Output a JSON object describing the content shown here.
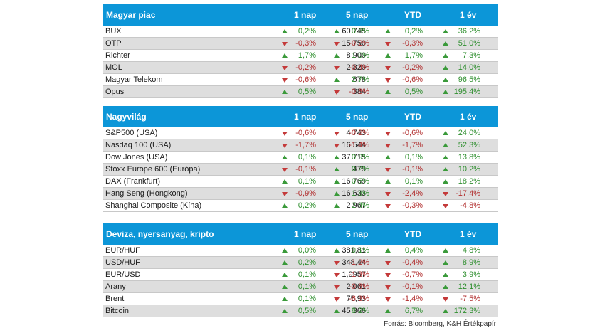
{
  "colors": {
    "header_bg": "#0c96d8",
    "up": "#3a9a3a",
    "down": "#c43a3a",
    "row_shade": "#dedede"
  },
  "tables": [
    {
      "title": "Magyar piac",
      "cols": [
        "1 nap",
        "5 nap",
        "YTD",
        "1 év"
      ],
      "rows": [
        {
          "name": "BUX",
          "value": "60 745",
          "changes": [
            "0,2%",
            "0,3%",
            "0,2%",
            "36,2%"
          ],
          "dirs": [
            "up",
            "up",
            "up",
            "up"
          ]
        },
        {
          "name": "OTP",
          "value": "15 750",
          "changes": [
            "-0,3%",
            "-0,2%",
            "-0,3%",
            "51,0%"
          ],
          "dirs": [
            "down",
            "down",
            "down",
            "up"
          ]
        },
        {
          "name": "Richter",
          "value": "8 900",
          "changes": [
            "1,7%",
            "1,0%",
            "1,7%",
            "7,3%"
          ],
          "dirs": [
            "up",
            "up",
            "up",
            "up"
          ]
        },
        {
          "name": "MOL",
          "value": "2 820",
          "changes": [
            "-0,2%",
            "-0,4%",
            "-0,2%",
            "14,0%"
          ],
          "dirs": [
            "down",
            "down",
            "down",
            "up"
          ]
        },
        {
          "name": "Magyar Telekom",
          "value": "678",
          "changes": [
            "-0,6%",
            "2,7%",
            "-0,6%",
            "96,5%"
          ],
          "dirs": [
            "down",
            "up",
            "down",
            "up"
          ]
        },
        {
          "name": "Opus",
          "value": "384",
          "changes": [
            "0,5%",
            "-0,8%",
            "0,5%",
            "195,4%"
          ],
          "dirs": [
            "up",
            "down",
            "up",
            "up"
          ]
        }
      ]
    },
    {
      "title": "Nagyvilág",
      "cols": [
        "1 nap",
        "5 nap",
        "YTD",
        "1 év"
      ],
      "rows": [
        {
          "name": "S&P500 (USA)",
          "value": "4 743",
          "changes": [
            "-0,6%",
            "-0,2%",
            "-0,6%",
            "24,0%"
          ],
          "dirs": [
            "down",
            "down",
            "down",
            "up"
          ]
        },
        {
          "name": "Nasdaq 100 (USA)",
          "value": "16 544",
          "changes": [
            "-1,7%",
            "-1,4%",
            "-1,7%",
            "52,3%"
          ],
          "dirs": [
            "down",
            "down",
            "down",
            "up"
          ]
        },
        {
          "name": "Dow Jones (USA)",
          "value": "37 715",
          "changes": [
            "0,1%",
            "0,9%",
            "0,1%",
            "13,8%"
          ],
          "dirs": [
            "up",
            "up",
            "up",
            "up"
          ]
        },
        {
          "name": "Stoxx Europe 600 (Európa)",
          "value": "479",
          "changes": [
            "-0,1%",
            "0,2%",
            "-0,1%",
            "10,2%"
          ],
          "dirs": [
            "down",
            "up",
            "down",
            "up"
          ]
        },
        {
          "name": "DAX (Frankfurt)",
          "value": "16 769",
          "changes": [
            "0,1%",
            "0,5%",
            "0,1%",
            "18,2%"
          ],
          "dirs": [
            "up",
            "up",
            "up",
            "up"
          ]
        },
        {
          "name": "Hang Seng (Hongkong)",
          "value": "16 633",
          "changes": [
            "-0,9%",
            "1,8%",
            "-2,4%",
            "-17,4%"
          ],
          "dirs": [
            "down",
            "up",
            "down",
            "down"
          ]
        },
        {
          "name": "Shanghai Composite (Kína)",
          "value": "2 967",
          "changes": [
            "0,2%",
            "2,4%",
            "-0,3%",
            "-4,8%"
          ],
          "dirs": [
            "up",
            "up",
            "down",
            "down"
          ]
        }
      ]
    },
    {
      "title": "Deviza, nyersanyag, kripto",
      "cols": [
        "1 nap",
        "5 nap",
        "YTD",
        "1 év"
      ],
      "rows": [
        {
          "name": "EUR/HUF",
          "value": "381,81",
          "changes": [
            "0,0%",
            "0,1%",
            "0,4%",
            "4,8%"
          ],
          "dirs": [
            "up",
            "up",
            "up",
            "up"
          ]
        },
        {
          "name": "USD/HUF",
          "value": "348,44",
          "changes": [
            "0,2%",
            "-1,2%",
            "-0,4%",
            "8,9%"
          ],
          "dirs": [
            "up",
            "down",
            "down",
            "up"
          ]
        },
        {
          "name": "EUR/USD",
          "value": "1,0957",
          "changes": [
            "0,1%",
            "-1,3%",
            "-0,7%",
            "3,9%"
          ],
          "dirs": [
            "up",
            "down",
            "down",
            "up"
          ]
        },
        {
          "name": "Arany",
          "value": "2 061",
          "changes": [
            "0,1%",
            "-0,8%",
            "-0,1%",
            "12,1%"
          ],
          "dirs": [
            "up",
            "down",
            "down",
            "up"
          ]
        },
        {
          "name": "Brent",
          "value": "75,93",
          "changes": [
            "0,1%",
            "-6,3%",
            "-1,4%",
            "-7,5%"
          ],
          "dirs": [
            "up",
            "down",
            "down",
            "down"
          ]
        },
        {
          "name": "Bitcoin",
          "value": "45 366",
          "changes": [
            "0,5%",
            "8,2%",
            "6,7%",
            "172,3%"
          ],
          "dirs": [
            "up",
            "up",
            "up",
            "up"
          ]
        }
      ]
    }
  ],
  "source": "Forrás: Bloomberg, K&H Értékpapír"
}
